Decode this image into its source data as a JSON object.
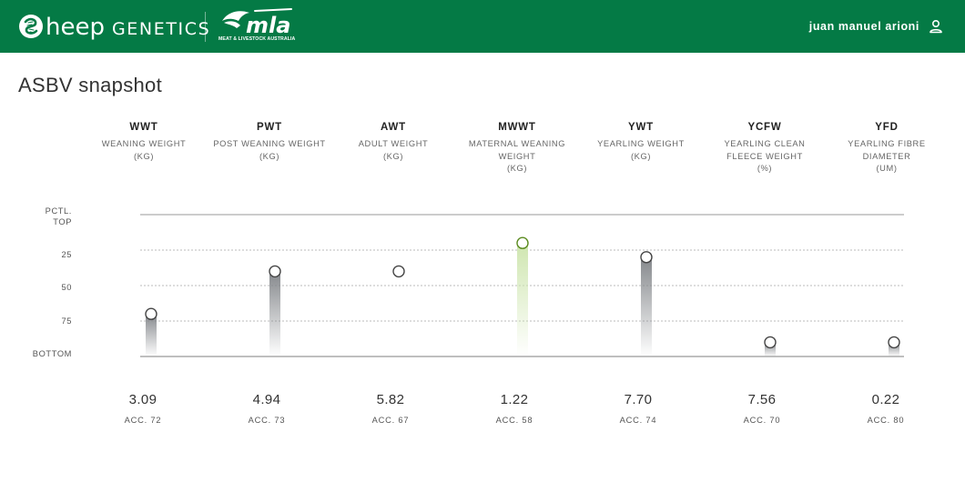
{
  "header": {
    "brand_left": "heep",
    "brand_right": "GENETICS",
    "partner_logo": "mla",
    "partner_sub": "MEAT & LIVESTOCK AUSTRALIA",
    "user_name": "juan manuel arioni",
    "user_icon": "person-icon",
    "colors": {
      "bar": "#047a45",
      "text": "#ffffff"
    }
  },
  "page": {
    "title": "ASBV snapshot"
  },
  "chart_data": {
    "type": "scatter",
    "title": "",
    "y_axis": {
      "ticks": [
        "PCTL.\nTOP",
        "25",
        "50",
        "75",
        "BOTTOM"
      ],
      "range": [
        0,
        100
      ],
      "direction": "top-to-bottom"
    },
    "grid": true,
    "categories": [
      {
        "code": "WWT",
        "desc": [
          "WEANING WEIGHT",
          "(KG)"
        ],
        "value": "3.09",
        "acc": "ACC. 72",
        "percentile": 70,
        "highlight": false
      },
      {
        "code": "PWT",
        "desc": [
          "POST WEANING WEIGHT",
          "(KG)"
        ],
        "value": "4.94",
        "acc": "ACC. 73",
        "percentile": 40,
        "highlight": false
      },
      {
        "code": "AWT",
        "desc": [
          "ADULT WEIGHT",
          "(KG)"
        ],
        "value": "5.82",
        "acc": "ACC. 67",
        "percentile": 40,
        "highlight": false,
        "no_bar": true
      },
      {
        "code": "MWWT",
        "desc": [
          "MATERNAL WEANING",
          "WEIGHT",
          "(KG)"
        ],
        "value": "1.22",
        "acc": "ACC. 58",
        "percentile": 20,
        "highlight": true
      },
      {
        "code": "YWT",
        "desc": [
          "YEARLING WEIGHT",
          "(KG)"
        ],
        "value": "7.70",
        "acc": "ACC. 74",
        "percentile": 30,
        "highlight": false
      },
      {
        "code": "YCFW",
        "desc": [
          "YEARLING CLEAN",
          "FLEECE WEIGHT",
          "(%)"
        ],
        "value": "7.56",
        "acc": "ACC. 70",
        "percentile": 90,
        "highlight": false
      },
      {
        "code": "YFD",
        "desc": [
          "YEARLING FIBRE",
          "DIAMETER",
          "(UM)"
        ],
        "value": "0.22",
        "acc": "ACC. 80",
        "percentile": 90,
        "highlight": false
      }
    ],
    "colors": {
      "marker": "#444444",
      "highlight": "#5a8a1e",
      "highlight_bar": "#cfe6b0",
      "bar": "#8f9296",
      "grid": "#bbbbbb",
      "axis": "#999999"
    }
  }
}
